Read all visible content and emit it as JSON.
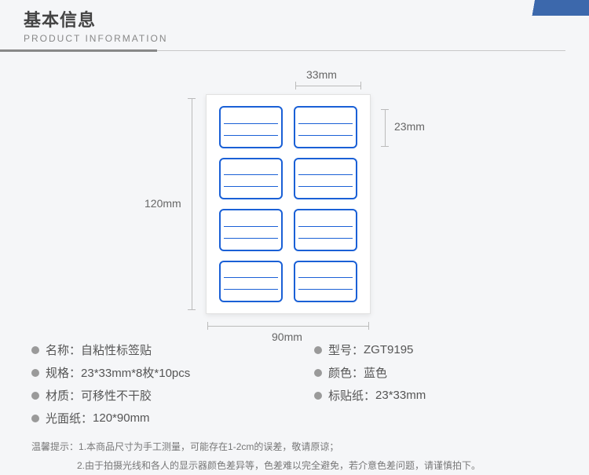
{
  "header": {
    "title_cn": "基本信息",
    "title_en": "PRODUCT  INFORMATION"
  },
  "diagram": {
    "sheet_width_mm": 90,
    "sheet_height_mm": 120,
    "label_width_mm": 33,
    "label_height_mm": 23,
    "grid_cols": 2,
    "grid_rows": 4,
    "label_border_color": "#1a60d6",
    "sheet_bg": "#ffffff",
    "dim_top": "33mm",
    "dim_right": "23mm",
    "dim_left": "120mm",
    "dim_bottom": "90mm"
  },
  "specs": {
    "left": [
      {
        "label": "名称：",
        "value": "自粘性标签贴"
      },
      {
        "label": "规格：",
        "value": "23*33mm*8枚*10pcs"
      },
      {
        "label": "材质：",
        "value": "可移性不干胶"
      },
      {
        "label": "光面纸：",
        "value": "120*90mm"
      }
    ],
    "right": [
      {
        "label": "型号：",
        "value": "ZGT9195"
      },
      {
        "label": "颜色：",
        "value": "蓝色"
      },
      {
        "label": "标贴纸：",
        "value": "23*33mm"
      }
    ]
  },
  "notes": {
    "prefix": "温馨提示：",
    "line1": "1.本商品尺寸为手工测量，可能存在1-2cm的误差，敬请原谅；",
    "line2": "2.由于拍摄光线和各人的显示器颜色差异等，色差难以完全避免，若介意色差问题，请谨慎拍下。"
  },
  "colors": {
    "bullet": "#9a9a9a",
    "text": "#555555",
    "dim_line": "#bbbbbb",
    "accent": "#1b4f9e"
  }
}
